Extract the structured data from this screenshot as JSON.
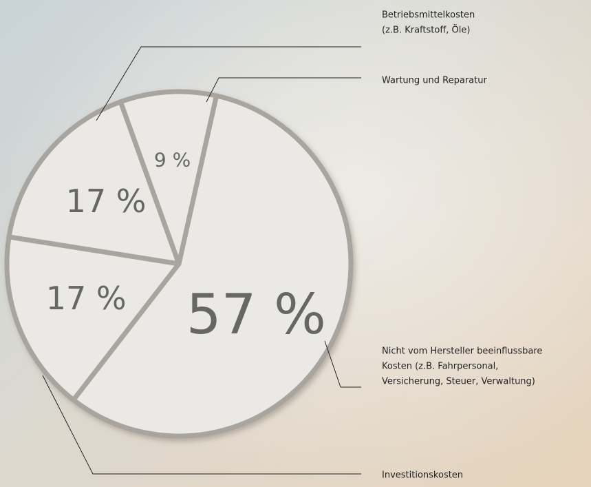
{
  "chart_data": {
    "type": "pie",
    "categories": [
      [
        "Nicht vom Hersteller beeinflussbare",
        "Kosten (z.B. Fahrpersonal,",
        "Versicherung, Steuer, Verwaltung)"
      ],
      [
        "Investitionskosten"
      ],
      [
        "Betriebsmittelkosten",
        "(z.B. Kraftstoff, Öle)"
      ],
      [
        "Wartung und Reparatur"
      ]
    ],
    "values": [
      57,
      17,
      17,
      9
    ],
    "value_labels": [
      "57 %",
      "17 %",
      "17 %",
      "9 %"
    ],
    "color": "#ebe9e6"
  }
}
